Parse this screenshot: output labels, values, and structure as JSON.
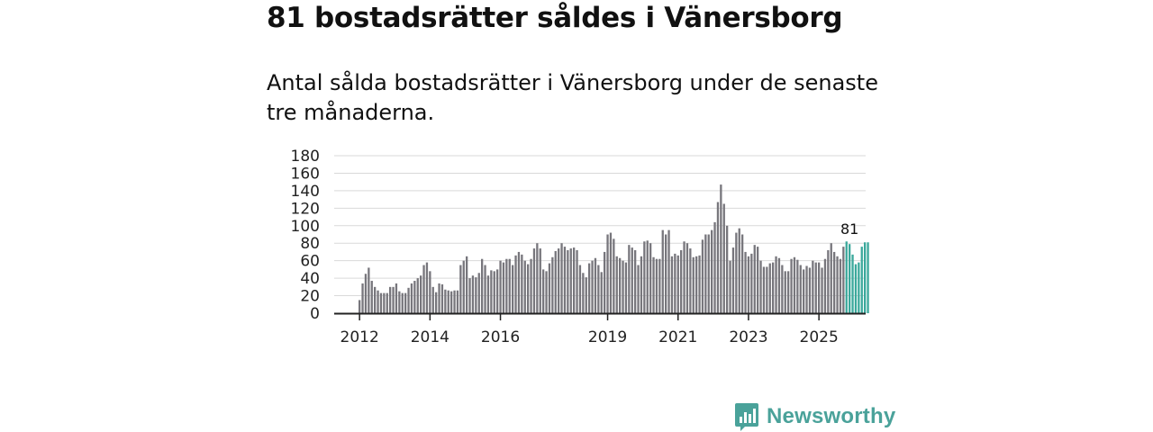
{
  "headline": "81 bostadsrätter såldes i Vänersborg",
  "subtitle": "Antal sålda bostadsrätter i Vänersborg under de senaste tre månaderna.",
  "brand": {
    "name": "Newsworthy"
  },
  "colors": {
    "bar": "#77767c",
    "highlight": "#3aa89b",
    "axis": "#222222",
    "grid": "#d9d9d9",
    "brand": "#4aa29a"
  },
  "chart_data": {
    "type": "bar",
    "title": "81 bostadsrätter såldes i Vänersborg",
    "subtitle": "Antal sålda bostadsrätter i Vänersborg under de senaste tre månaderna.",
    "xlabel": "",
    "ylabel": "",
    "ylim": [
      0,
      180
    ],
    "yticks": [
      "0",
      "20",
      "40",
      "60",
      "80",
      "100",
      "120",
      "140",
      "160",
      "180"
    ],
    "xticks": [
      {
        "label": "2012",
        "index": 0
      },
      {
        "label": "2014",
        "index": 23
      },
      {
        "label": "2016",
        "index": 46
      },
      {
        "label": "2019",
        "index": 81
      },
      {
        "label": "2021",
        "index": 104
      },
      {
        "label": "2023",
        "index": 127
      },
      {
        "label": "2025",
        "index": 150
      }
    ],
    "annotation": {
      "text": "81",
      "index": 160
    },
    "highlight_from_index": 159,
    "values": [
      15,
      34,
      45,
      52,
      37,
      30,
      26,
      23,
      23,
      23,
      30,
      30,
      34,
      25,
      23,
      23,
      29,
      34,
      37,
      40,
      43,
      55,
      58,
      48,
      30,
      24,
      34,
      33,
      27,
      26,
      25,
      26,
      26,
      55,
      60,
      65,
      40,
      43,
      41,
      46,
      62,
      55,
      43,
      49,
      48,
      50,
      60,
      58,
      62,
      62,
      55,
      66,
      70,
      67,
      60,
      56,
      62,
      74,
      80,
      74,
      50,
      48,
      57,
      64,
      71,
      74,
      80,
      76,
      72,
      74,
      75,
      72,
      55,
      46,
      41,
      57,
      60,
      63,
      55,
      47,
      70,
      90,
      92,
      85,
      65,
      63,
      60,
      58,
      78,
      75,
      72,
      55,
      65,
      82,
      83,
      80,
      64,
      62,
      62,
      95,
      90,
      95,
      65,
      68,
      66,
      72,
      82,
      80,
      74,
      64,
      65,
      66,
      84,
      90,
      90,
      95,
      104,
      127,
      147,
      125,
      100,
      60,
      75,
      92,
      97,
      90,
      70,
      65,
      68,
      78,
      76,
      60,
      53,
      53,
      57,
      58,
      65,
      63,
      55,
      48,
      48,
      62,
      64,
      61,
      55,
      50,
      54,
      52,
      60,
      58,
      58,
      52,
      62,
      72,
      80,
      70,
      65,
      62,
      76,
      82,
      79,
      67,
      56,
      58,
      76,
      81,
      81
    ]
  }
}
